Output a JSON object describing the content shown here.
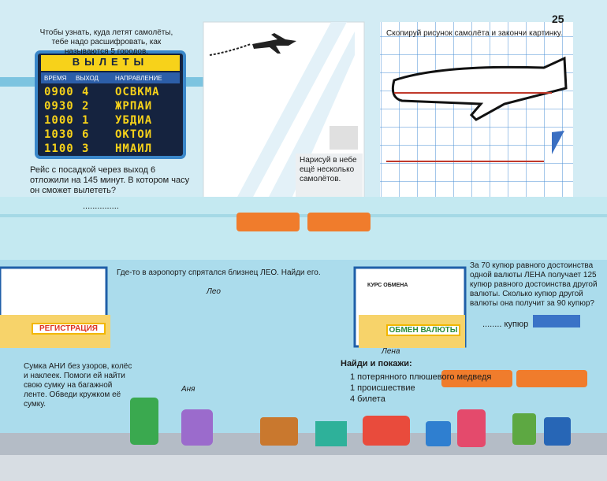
{
  "page_number": "25",
  "board_intro": "Чтобы узнать, куда летят самолёты, тебе надо расшифровать, как называются 5 городов.",
  "board": {
    "title": "ВЫЛЕТЫ",
    "headers": [
      "ВРЕМЯ",
      "ВЫХОД",
      "НАПРАВЛЕНИЕ"
    ],
    "rows": [
      [
        "0900",
        "4",
        "ОСВКМА"
      ],
      [
        "0930",
        "2",
        "ЖРПАИ"
      ],
      [
        "1000",
        "1",
        "УБДИА"
      ],
      [
        "1030",
        "6",
        "ОКТОИ"
      ],
      [
        "1100",
        "3",
        "НМАИЛ"
      ]
    ]
  },
  "delay_question": "Рейс с посадкой через выход 6 отложили на 145 минут. В котором часу он сможет вылететь?",
  "delay_answer": "...............",
  "window_note": "Нарисуй в небе ещё несколько самолётов.",
  "copy_task": "Скопируй рисунок самолёта и закончи картинку.",
  "leo_task": "Где-то в аэропорту спрятался близнец ЛЕО. Найди его.",
  "leo_label": "Лео",
  "registration": "РЕГИСТРАЦИЯ",
  "exchange_rate": "КУРС ОБМЕНА",
  "exchange": "ОБМЕН ВАЛЮТЫ",
  "lena_label": "Лена",
  "currency_task": "За 70 купюр равного достоинства одной валюты ЛЕНА получает 125 купюр равного достоинства другой валюты. Сколько купюр другой валюты она получит за 90 купюр?",
  "currency_answer": "........ купюр",
  "bag_task": "Сумка АНИ без узоров, колёс и наклеек. Помоги ей найти свою сумку на багажной ленте. Обведи кружком её сумку.",
  "anya_label": "Аня",
  "find": {
    "title": "Найди и покажи:",
    "items": [
      "1 потерянного плюшевого медведя",
      "1 происшествие",
      "4 билета"
    ]
  }
}
